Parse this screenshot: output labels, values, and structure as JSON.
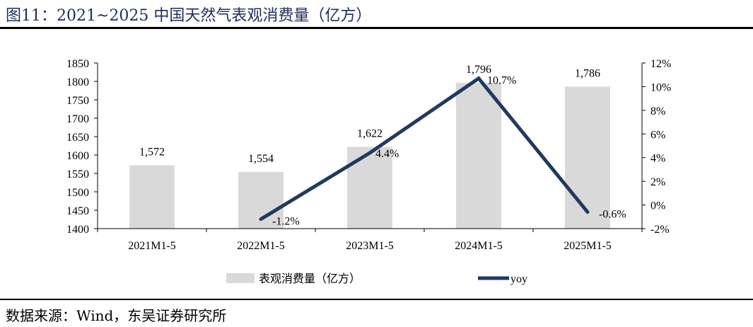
{
  "title": "图11：2021~2025 中国天然气表观消费量（亿方）",
  "source": "数据来源：Wind，东吴证券研究所",
  "chart_data": {
    "type": "bar",
    "categories": [
      "2021M1-5",
      "2022M1-5",
      "2023M1-5",
      "2024M1-5",
      "2025M1-5"
    ],
    "series": [
      {
        "name": "表观消费量（亿方）",
        "type": "bar",
        "axis": "left",
        "color": "#d9d9d9",
        "values": [
          1572,
          1554,
          1622,
          1796,
          1786
        ],
        "labels": [
          "1,572",
          "1,554",
          "1,622",
          "1,796",
          "1,786"
        ]
      },
      {
        "name": "yoy",
        "type": "line",
        "axis": "right",
        "color": "#1f3a5f",
        "values": [
          null,
          -1.2,
          4.4,
          10.7,
          -0.6
        ],
        "labels": [
          "",
          "-1.2%",
          "4.4%",
          "10.7%",
          "-0.6%"
        ]
      }
    ],
    "y_left": {
      "ylim": [
        1400,
        1850
      ],
      "ticks": [
        "1400",
        "1450",
        "1500",
        "1550",
        "1600",
        "1650",
        "1700",
        "1750",
        "1800",
        "1850"
      ]
    },
    "y_right": {
      "ylim": [
        -2,
        12
      ],
      "ticks": [
        "-2%",
        "0%",
        "2%",
        "4%",
        "6%",
        "8%",
        "10%",
        "12%"
      ]
    },
    "grid": false,
    "legend_position": "bottom"
  }
}
